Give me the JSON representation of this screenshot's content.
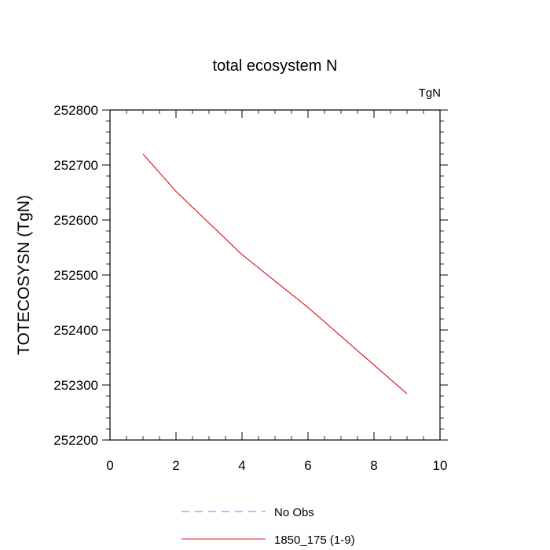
{
  "chart_data": {
    "type": "line",
    "title": "total ecosystem N",
    "units_label": "TgN",
    "xlabel": "",
    "ylabel": "TOTECOSYSN  (TgN)",
    "xlim": [
      0,
      10
    ],
    "ylim": [
      252200,
      252800
    ],
    "xticks": [
      0,
      2,
      4,
      6,
      8,
      10
    ],
    "yticks": [
      252200,
      252300,
      252400,
      252500,
      252600,
      252700,
      252800
    ],
    "grid": false,
    "legend_position": "bottom",
    "series": [
      {
        "name": "No Obs",
        "color": "#7b7bd6",
        "dash": "dashed",
        "x": [],
        "y": []
      },
      {
        "name": "1850_175 (1-9)",
        "color": "#e0191f",
        "dash": "solid",
        "x": [
          1,
          2,
          4,
          6,
          9
        ],
        "y": [
          252720,
          252652,
          252537,
          252441,
          252284
        ]
      }
    ]
  }
}
